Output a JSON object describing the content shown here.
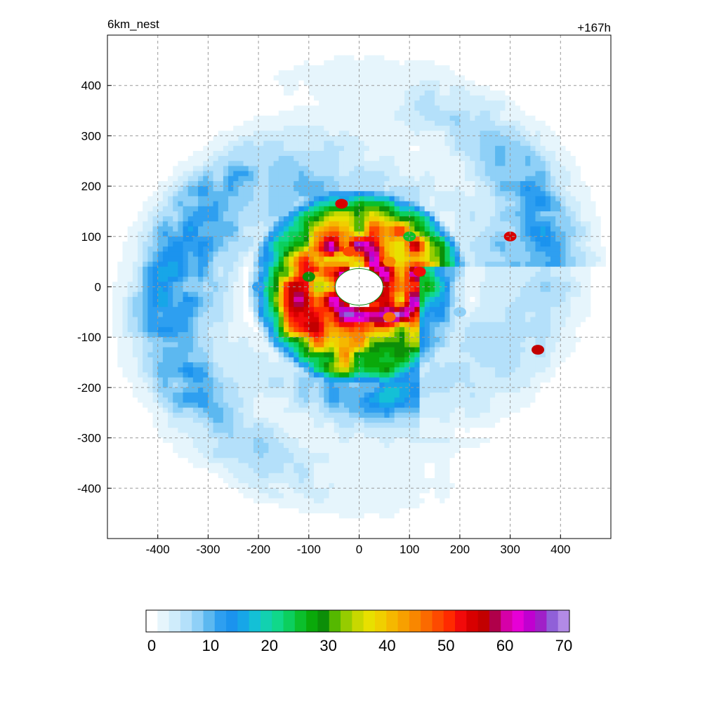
{
  "title_left": "6km_nest",
  "title_right": "+167h",
  "chart_data": {
    "type": "heatmap",
    "title": "6km_nest",
    "subtitle": "+167h",
    "xlabel": "",
    "ylabel": "",
    "xlim": [
      -500,
      500
    ],
    "ylim": [
      -500,
      500
    ],
    "x_ticks": [
      -400,
      -300,
      -200,
      -100,
      0,
      100,
      200,
      300,
      400
    ],
    "y_ticks": [
      400,
      300,
      200,
      100,
      0,
      -100,
      -200,
      -300,
      -400
    ],
    "grid": true,
    "colorbar": {
      "min": 0,
      "max": 70,
      "ticks": [
        0,
        10,
        20,
        30,
        40,
        50,
        60,
        70
      ],
      "colors": [
        "#ffffff",
        "#e6f5fc",
        "#cfecfb",
        "#b4e0fa",
        "#8fd0f7",
        "#5cb8f0",
        "#2e9ff0",
        "#1b93ee",
        "#17a6e8",
        "#14c0d6",
        "#12d1b0",
        "#10d88a",
        "#0ccf5e",
        "#0bbf2c",
        "#0aa90a",
        "#0c8e08",
        "#55b800",
        "#96cc00",
        "#c8d800",
        "#e8e000",
        "#f0cf00",
        "#f5b800",
        "#f7a000",
        "#f98700",
        "#fb6a00",
        "#fd4a00",
        "#ff2a00",
        "#f20a0a",
        "#d80000",
        "#c20000",
        "#b0004a",
        "#d600a8",
        "#e600d6",
        "#c000d0",
        "#a020c8",
        "#9060d8",
        "#b28ae6"
      ]
    },
    "field_centers": [
      {
        "x": 0,
        "y": 0,
        "desc": "eye (0 values)"
      }
    ],
    "intensity_samples": [
      {
        "x": -20,
        "y": 70,
        "value": 48
      },
      {
        "x": 60,
        "y": 50,
        "value": 45
      },
      {
        "x": 60,
        "y": -60,
        "value": 46
      },
      {
        "x": 0,
        "y": -100,
        "value": 44
      },
      {
        "x": -100,
        "y": 20,
        "value": 30
      },
      {
        "x": 100,
        "y": 100,
        "value": 26
      },
      {
        "x": -200,
        "y": 0,
        "value": 12
      },
      {
        "x": 200,
        "y": -50,
        "value": 8
      },
      {
        "x": 120,
        "y": 30,
        "value": 52
      },
      {
        "x": -35,
        "y": 165,
        "value": 53
      },
      {
        "x": 300,
        "y": 100,
        "value": 54
      },
      {
        "x": 355,
        "y": -125,
        "value": 56
      }
    ]
  }
}
